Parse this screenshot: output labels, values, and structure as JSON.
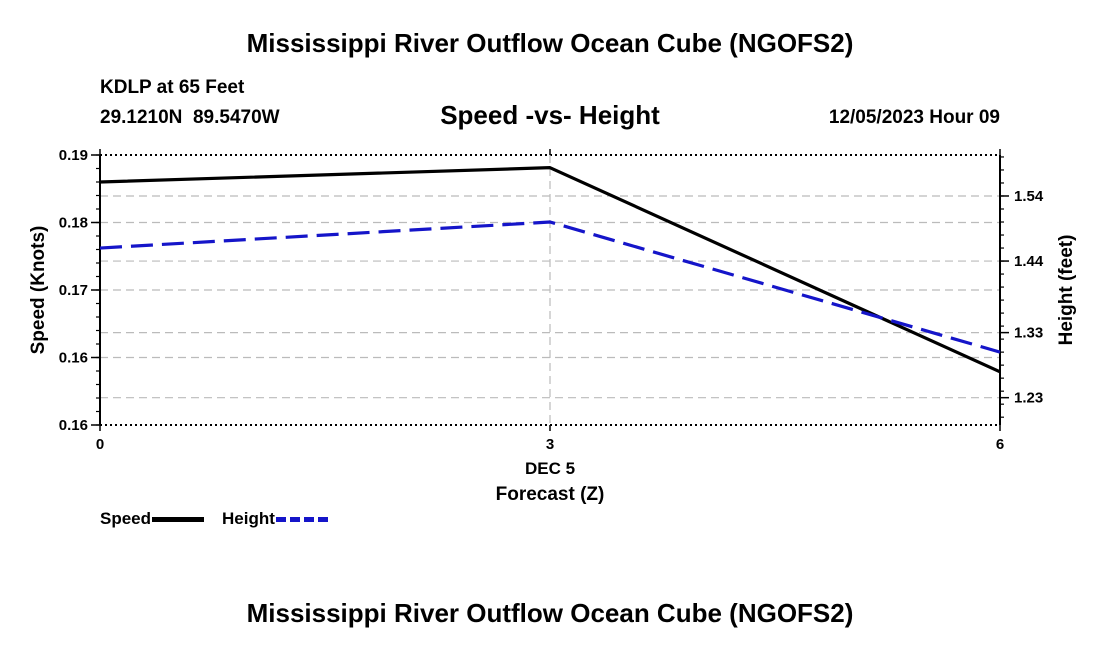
{
  "header": {
    "title": "Mississippi River Outflow Ocean Cube (NGOFS2)",
    "station": "KDLP at 65 Feet",
    "coordinates": "29.1210N  89.5470W",
    "subtitle": "Speed -vs- Height",
    "datetime": "12/05/2023 Hour 09"
  },
  "footer": {
    "title": "Mississippi River Outflow Ocean Cube (NGOFS2)"
  },
  "colors": {
    "speed": "#000000",
    "height": "#1515c9",
    "grid": "#bbbbbb"
  },
  "chart_data": {
    "type": "line",
    "title": "Speed -vs- Height",
    "xlabel": "Forecast (Z)",
    "x_date_label": "DEC 5",
    "ylabel": "Speed (Knots)",
    "y2label": "Height (feet)",
    "x": [
      0,
      3,
      6
    ],
    "xlim": [
      0,
      6
    ],
    "x_ticks": [
      0,
      3,
      6
    ],
    "x_tick_labels": [
      "0",
      "3",
      "6"
    ],
    "ylim": [
      0.1575,
      0.1895
    ],
    "y_ticks": [
      0.1575,
      0.1655,
      0.1735,
      0.1815,
      0.1895
    ],
    "y_tick_labels": [
      "0.16",
      "0.16",
      "0.17",
      "0.18",
      "0.19"
    ],
    "y2lim": [
      1.188,
      1.603
    ],
    "y2_ticks": [
      1.23,
      1.33,
      1.44,
      1.54
    ],
    "y2_tick_labels": [
      "1.23",
      "1.33",
      "1.44",
      "1.54"
    ],
    "grid": true,
    "legend_position": "bottom-left",
    "series": [
      {
        "name": "Speed",
        "axis": "left",
        "style": "solid",
        "values": [
          0.1863,
          0.188,
          0.1638
        ]
      },
      {
        "name": "Height",
        "axis": "right",
        "style": "dashed",
        "values": [
          1.46,
          1.5,
          1.3
        ]
      }
    ]
  }
}
